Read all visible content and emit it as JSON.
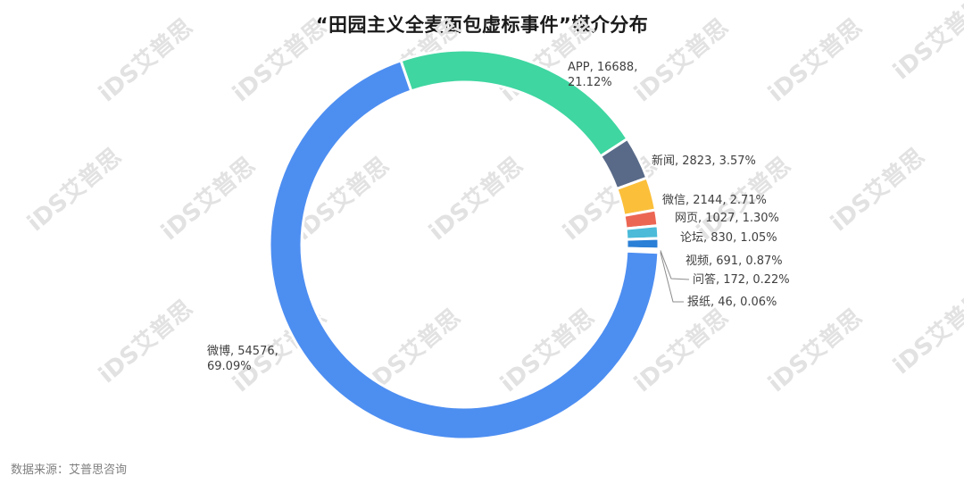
{
  "title": "“田园主义全麦面包虚标事件”媒介分布",
  "footer": "数据来源：艾普思咨询",
  "watermark": "iDS艾普思",
  "colors": {
    "weibo": "#4d8ef1",
    "app": "#3fd6a1",
    "news": "#596a88",
    "weixin": "#fbbf3a",
    "web": "#ec6654",
    "forum": "#4bbbd9",
    "video": "#2a7fd6",
    "qa": "#1b3d86",
    "paper": "#a7b4c5"
  },
  "chart_data": {
    "type": "pie",
    "donut": true,
    "title": "“田园主义全麦面包虚标事件”媒介分布",
    "slices": [
      {
        "name": "APP",
        "value": 16688,
        "percent": "21.12%",
        "color_key": "app",
        "label_l1": "APP, 16688,",
        "label_l2": "21.12%"
      },
      {
        "name": "新闻",
        "value": 2823,
        "percent": "3.57%",
        "color_key": "news",
        "label_l1": "新闻, 2823, 3.57%"
      },
      {
        "name": "微信",
        "value": 2144,
        "percent": "2.71%",
        "color_key": "weixin",
        "label_l1": "微信, 2144, 2.71%"
      },
      {
        "name": "网页",
        "value": 1027,
        "percent": "1.30%",
        "color_key": "web",
        "label_l1": "网页, 1027, 1.30%"
      },
      {
        "name": "论坛",
        "value": 830,
        "percent": "1.05%",
        "color_key": "forum",
        "label_l1": "论坛, 830, 1.05%"
      },
      {
        "name": "视频",
        "value": 691,
        "percent": "0.87%",
        "color_key": "video",
        "label_l1": "视频, 691, 0.87%"
      },
      {
        "name": "问答",
        "value": 172,
        "percent": "0.22%",
        "color_key": "qa",
        "label_l1": "问答, 172, 0.22%"
      },
      {
        "name": "报纸",
        "value": 46,
        "percent": "0.06%",
        "color_key": "paper",
        "label_l1": "报纸, 46, 0.06%"
      },
      {
        "name": "微博",
        "value": 54576,
        "percent": "69.09%",
        "color_key": "weibo",
        "label_l1": "微博, 54576,",
        "label_l2": "69.09%"
      }
    ]
  }
}
